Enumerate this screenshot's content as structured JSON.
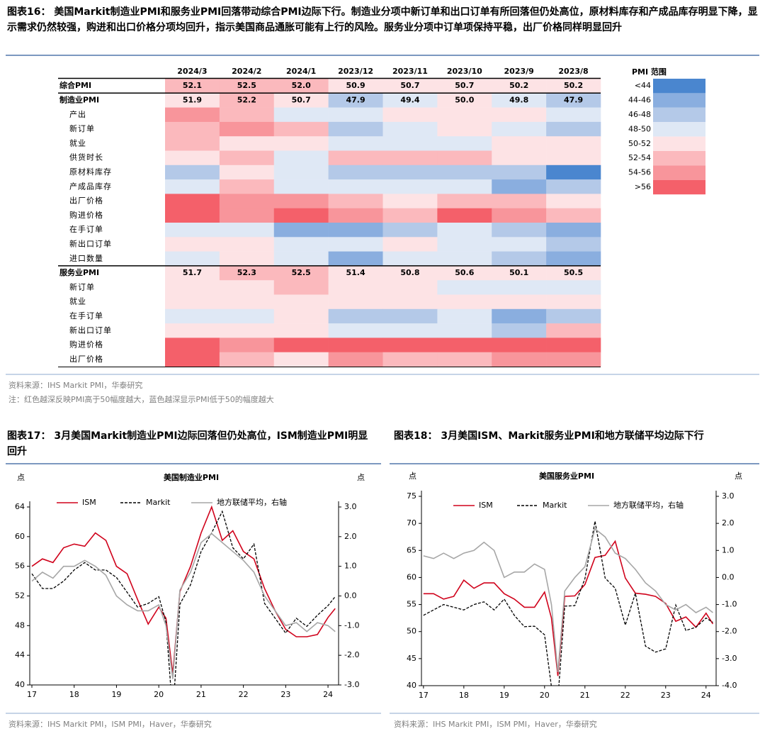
{
  "figure16": {
    "caption": "图表16： 美国Markit制造业PMI和服务业PMI回落带动综合PMI边际下行。制造业分项中新订单和出口订单有所回落但仍处高位，原材料库存和产成品库存明显下降，显示需求仍然较强，购进和出口价格分项均回升，指示美国商品通胀可能有上行的风险。服务业分项中订单项保持平稳，出厂价格同样明显回升",
    "table": {
      "columns": [
        "2024/3",
        "2024/2",
        "2024/1",
        "2023/12",
        "2023/11",
        "2023/10",
        "2023/9",
        "2023/8"
      ],
      "rows": [
        {
          "label": "综合PMI",
          "values": [
            52.1,
            52.5,
            52.0,
            50.9,
            50.7,
            50.7,
            50.2,
            50.2
          ],
          "value_labels": [
            "52.1",
            "52.5",
            "52.0",
            "50.9",
            "50.7",
            "50.7",
            "50.2",
            "50.2"
          ]
        },
        {
          "label": "制造业PMI",
          "values": [
            51.9,
            52.2,
            50.7,
            47.9,
            49.4,
            50.0,
            49.8,
            47.9
          ],
          "value_labels": [
            "51.9",
            "52.2",
            "50.7",
            "47.9",
            "49.4",
            "50.0",
            "49.8",
            "47.9"
          ]
        },
        {
          "label": "产出",
          "values": [
            55,
            53,
            49,
            49,
            51,
            50.5,
            51,
            49
          ]
        },
        {
          "label": "新订单",
          "values": [
            53,
            54.5,
            52.5,
            47.5,
            48.5,
            50.5,
            49,
            47
          ]
        },
        {
          "label": "就业",
          "values": [
            53,
            50.5,
            50.5,
            49,
            49,
            49,
            50.5,
            50.5
          ]
        },
        {
          "label": "供货时长",
          "values": [
            51,
            53,
            49,
            52.5,
            52.5,
            52.5,
            51,
            51
          ]
        },
        {
          "label": "原材料库存",
          "values": [
            46.5,
            51,
            49,
            46.5,
            46.5,
            46.5,
            46.5,
            43.5
          ]
        },
        {
          "label": "产成品库存",
          "values": [
            49,
            52.5,
            49,
            49,
            49,
            49,
            45.5,
            46.5
          ]
        },
        {
          "label": "出厂价格",
          "values": [
            57,
            55,
            54.5,
            53,
            51,
            53,
            52.5,
            51
          ]
        },
        {
          "label": "购进价格",
          "values": [
            57,
            55,
            56.5,
            54.5,
            53,
            56.5,
            54.5,
            53
          ]
        },
        {
          "label": "在手订单",
          "values": [
            49,
            49,
            45,
            45,
            47,
            49,
            47,
            45.5
          ]
        },
        {
          "label": "新出口订单",
          "values": [
            51,
            51,
            49,
            49,
            51,
            49,
            49,
            47
          ]
        },
        {
          "label": "进口数量",
          "values": [
            49,
            51,
            49,
            45,
            49,
            49,
            47.5,
            45.5
          ]
        },
        {
          "label": "服务业PMI",
          "values": [
            51.7,
            52.3,
            52.5,
            51.4,
            50.8,
            50.6,
            50.1,
            50.5
          ],
          "value_labels": [
            "51.7",
            "52.3",
            "52.5",
            "51.4",
            "50.8",
            "50.6",
            "50.1",
            "50.5"
          ]
        },
        {
          "label": "新订单",
          "values": [
            51,
            51,
            53,
            51,
            51,
            49,
            49,
            49
          ]
        },
        {
          "label": "就业",
          "values": [
            51,
            51,
            51,
            51,
            51,
            51,
            51,
            51
          ]
        },
        {
          "label": "在手订单",
          "values": [
            49,
            49,
            51,
            47,
            47,
            49,
            45.5,
            47
          ]
        },
        {
          "label": "新出口订单",
          "values": [
            51,
            51,
            51,
            49,
            49,
            49,
            47,
            53
          ]
        },
        {
          "label": "购进价格",
          "values": [
            57,
            55,
            57,
            57,
            57,
            57,
            57,
            57
          ]
        },
        {
          "label": "出厂价格",
          "values": [
            57,
            53,
            51,
            55,
            53,
            53,
            55,
            55
          ]
        }
      ]
    },
    "legend": {
      "title": "PMI 范围",
      "labels": [
        "<44",
        "44-46",
        "46-48",
        "48-50",
        "50-52",
        "52-54",
        "54-56",
        ">56"
      ],
      "colors": [
        "#4a86cf",
        "#8aaedf",
        "#b4c9e8",
        "#dfe8f5",
        "#fde3e5",
        "#fbb9bd",
        "#f8959b",
        "#f4606a"
      ],
      "breaks": [
        44,
        46,
        48,
        50,
        52,
        54,
        56
      ]
    },
    "source": "资料来源：IHS Markit PMI，华泰研究",
    "note": "注：红色越深反映PMI高于50幅度越大，蓝色越深显示PMI低于50的幅度越大"
  },
  "figure17": {
    "caption": "图表17： 3月美国Markit制造业PMI边际回落但仍处高位，ISM制造业PMI明显回升",
    "source": "资料来源：IHS Markit PMI，ISM PMI，Haver，华泰研究"
  },
  "figure18": {
    "caption": "图表18： 3月美国ISM、Markit服务业PMI和地方联储平均边际下行",
    "source": "资料来源：IHS Markit PMI，ISM PMI，Haver，华泰研究"
  },
  "chart_data": [
    {
      "type": "line",
      "title": "美国制造业PMI",
      "y_label": "点",
      "y2_label": "点",
      "x": [
        17.0,
        17.25,
        17.5,
        17.75,
        18.0,
        18.25,
        18.5,
        18.75,
        19.0,
        19.25,
        19.5,
        19.75,
        20.0,
        20.17,
        20.33,
        20.5,
        20.75,
        21.0,
        21.25,
        21.5,
        21.75,
        22.0,
        22.25,
        22.5,
        22.75,
        23.0,
        23.25,
        23.5,
        23.75,
        24.0,
        24.17
      ],
      "xlim": [
        16.95,
        24.25
      ],
      "xticks": [
        17,
        18,
        19,
        20,
        21,
        22,
        23,
        24
      ],
      "ylim": [
        40,
        64
      ],
      "yticks": [
        40,
        44,
        48,
        52,
        56,
        60,
        64
      ],
      "y2lim": [
        -3,
        3
      ],
      "y2ticks": [
        {
          "value": -3,
          "label": "-3.0"
        },
        {
          "value": -2,
          "label": "-2.0"
        },
        {
          "value": -1,
          "label": "-1.0"
        },
        {
          "value": 0,
          "label": "0.0"
        },
        {
          "value": 1,
          "label": "1.0"
        },
        {
          "value": 2,
          "label": "2.0"
        },
        {
          "value": 3,
          "label": "3.0"
        }
      ],
      "series": [
        {
          "name": "ISM",
          "color": "#d0021b",
          "style": "solid",
          "values": [
            56,
            57,
            56.5,
            58.5,
            59,
            58.7,
            60.5,
            59.5,
            56,
            55,
            51.5,
            48.2,
            50.5,
            49,
            41.5,
            52.6,
            56,
            60.5,
            64,
            59.5,
            60.8,
            58,
            57,
            53,
            50,
            47.5,
            46.5,
            46.5,
            46.8,
            49.1,
            50.3
          ]
        },
        {
          "name": "Markit",
          "color": "#000000",
          "style": "dashed",
          "values": [
            55,
            53,
            53,
            54,
            55.5,
            56.5,
            55.5,
            55.5,
            54.5,
            52.5,
            50.5,
            51,
            51.9,
            48.5,
            36,
            50.9,
            53.5,
            58,
            60.5,
            63.4,
            58.5,
            57,
            59,
            51,
            49,
            47,
            49,
            47.9,
            49.4,
            50.7,
            51.9
          ]
        },
        {
          "name": "地方联储平均，右轴",
          "color": "#a6a6a6",
          "style": "solid",
          "axis": "y2",
          "values": [
            0.5,
            0.8,
            0.6,
            1.0,
            1.0,
            1.2,
            1.0,
            0.7,
            0.0,
            -0.3,
            -0.5,
            -0.5,
            -0.3,
            -1.0,
            -2.8,
            0.2,
            0.8,
            1.8,
            2.1,
            1.8,
            1.5,
            1.2,
            0.8,
            0.0,
            -0.5,
            -1.0,
            -0.9,
            -1.2,
            -0.9,
            -1.0,
            -1.2
          ]
        }
      ]
    },
    {
      "type": "line",
      "title": "美国服务业PMI",
      "y_label": "点",
      "y2_label": "点",
      "x": [
        17.0,
        17.25,
        17.5,
        17.75,
        18.0,
        18.25,
        18.5,
        18.75,
        19.0,
        19.25,
        19.5,
        19.75,
        20.0,
        20.17,
        20.33,
        20.5,
        20.75,
        21.0,
        21.25,
        21.5,
        21.75,
        22.0,
        22.25,
        22.5,
        22.75,
        23.0,
        23.25,
        23.5,
        23.75,
        24.0,
        24.17
      ],
      "xlim": [
        16.95,
        24.25
      ],
      "xticks": [
        17,
        18,
        19,
        20,
        21,
        22,
        23,
        24
      ],
      "ylim": [
        40,
        75
      ],
      "yticks": [
        40,
        45,
        50,
        55,
        60,
        65,
        70,
        75
      ],
      "y2lim": [
        -4,
        3
      ],
      "y2ticks": [
        {
          "value": -4,
          "label": "-4.0"
        },
        {
          "value": -3,
          "label": "-3.0"
        },
        {
          "value": -2,
          "label": "-2.0"
        },
        {
          "value": -1,
          "label": "-1.0"
        },
        {
          "value": 0,
          "label": "0.0"
        },
        {
          "value": 1,
          "label": "1.0"
        },
        {
          "value": 2,
          "label": "2.0"
        },
        {
          "value": 3,
          "label": "3.0"
        }
      ],
      "series": [
        {
          "name": "ISM",
          "color": "#d0021b",
          "style": "solid",
          "values": [
            57,
            57,
            56,
            56.5,
            59.5,
            58,
            59,
            59,
            57,
            56,
            54.5,
            54.5,
            57.3,
            52.5,
            41.8,
            56.5,
            56.6,
            58.7,
            63.7,
            64.1,
            66.7,
            59.9,
            57.1,
            56.9,
            56.5,
            55.2,
            51.9,
            52.7,
            50.8,
            53.4,
            51.4
          ]
        },
        {
          "name": "Markit",
          "color": "#000000",
          "style": "dashed",
          "values": [
            53,
            54,
            55,
            54.5,
            54,
            55,
            55.5,
            54,
            56,
            53,
            50.9,
            51,
            49.4,
            39.8,
            37.5,
            54.7,
            54.8,
            59.8,
            70.4,
            59.9,
            58,
            51.2,
            57.1,
            47.3,
            46.2,
            46.8,
            54.9,
            50.2,
            50.8,
            52.5,
            51.7
          ]
        },
        {
          "name": "地方联储平均，右轴",
          "color": "#a6a6a6",
          "style": "solid",
          "axis": "y2",
          "values": [
            0.8,
            0.7,
            0.9,
            0.7,
            0.9,
            1.0,
            1.3,
            1.0,
            0.0,
            0.2,
            0.2,
            0.5,
            0.3,
            -1.0,
            -3.5,
            -0.5,
            0.0,
            0.4,
            1.8,
            1.5,
            0.9,
            0.7,
            0.3,
            -0.2,
            -0.5,
            -1.0,
            -1.2,
            -1.0,
            -1.3,
            -1.1,
            -1.3
          ]
        }
      ]
    }
  ]
}
